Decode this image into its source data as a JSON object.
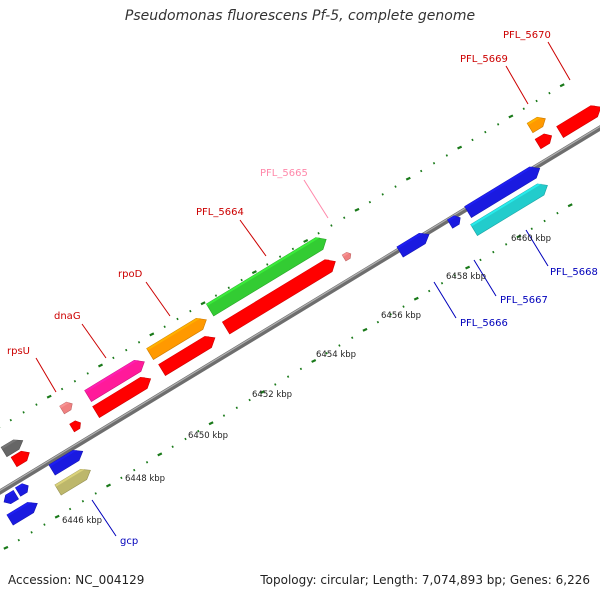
{
  "title": "Pseudomonas fluorescens Pf-5, complete genome",
  "footer": {
    "accession": "Accession: NC_004129",
    "summary": "Topology: circular; Length: 7,074,893 bp; Genes: 6,226"
  },
  "colors": {
    "backbone": "#8c8c8c",
    "tick": "#1a7a1a",
    "label_red": "#cc0000",
    "label_pink": "#ff88aa",
    "label_blue": "#0000bb",
    "gene_red": "#ff0000",
    "gene_blue": "#1a1ae0",
    "gene_green": "#33cc33",
    "gene_orange": "#ff9900",
    "gene_magenta": "#ff1a9a",
    "gene_cyan": "#22cccc",
    "gene_pink": "#f08080",
    "gene_olive": "#bdb76b",
    "gene_gray": "#666666"
  },
  "scale_labels": [
    {
      "text": "6446 kbp"
    },
    {
      "text": "6448 kbp"
    },
    {
      "text": "6450 kbp"
    },
    {
      "text": "6452 kbp"
    },
    {
      "text": "6454 kbp"
    },
    {
      "text": "6456 kbp"
    },
    {
      "text": "6458 kbp"
    },
    {
      "text": "6460 kbp"
    }
  ],
  "gene_labels": [
    {
      "id": "rpsU",
      "text": "rpsU",
      "color": "label_red"
    },
    {
      "id": "dnaG",
      "text": "dnaG",
      "color": "label_red"
    },
    {
      "id": "rpoD",
      "text": "rpoD",
      "color": "label_red"
    },
    {
      "id": "PFL_5664",
      "text": "PFL_5664",
      "color": "label_red"
    },
    {
      "id": "PFL_5665",
      "text": "PFL_5665",
      "color": "label_pink"
    },
    {
      "id": "PFL_5669",
      "text": "PFL_5669",
      "color": "label_red"
    },
    {
      "id": "PFL_5670",
      "text": "PFL_5670",
      "color": "label_red"
    },
    {
      "id": "gcp",
      "text": "gcp",
      "color": "label_blue"
    },
    {
      "id": "PFL_5666",
      "text": "PFL_5666",
      "color": "label_blue"
    },
    {
      "id": "PFL_5667",
      "text": "PFL_5667",
      "color": "label_blue"
    },
    {
      "id": "PFL_5668",
      "text": "PFL_5668",
      "color": "label_blue"
    }
  ],
  "genes": [
    {
      "id": "gene-gray-top",
      "color": "gene_gray",
      "strand": "forward"
    },
    {
      "id": "gene-red-small-left",
      "color": "gene_red",
      "strand": "forward"
    },
    {
      "id": "gene-blue-small-a",
      "color": "gene_blue",
      "strand": "reverse"
    },
    {
      "id": "gene-blue-small-b",
      "color": "gene_blue",
      "strand": "forward"
    },
    {
      "id": "gene-blue-lower",
      "color": "gene_blue",
      "strand": "forward"
    },
    {
      "id": "gene-blue-mid",
      "color": "gene_blue",
      "strand": "forward"
    },
    {
      "id": "gcp",
      "color": "gene_olive",
      "strand": "forward"
    },
    {
      "id": "rpsU-pink",
      "color": "gene_pink",
      "strand": "forward"
    },
    {
      "id": "rpsU-red",
      "color": "gene_red",
      "strand": "forward"
    },
    {
      "id": "dnaG",
      "color": "gene_magenta",
      "strand": "forward"
    },
    {
      "id": "dnaG-red",
      "color": "gene_red",
      "strand": "forward"
    },
    {
      "id": "rpoD",
      "color": "gene_orange",
      "strand": "forward"
    },
    {
      "id": "rpoD-red",
      "color": "gene_red",
      "strand": "forward"
    },
    {
      "id": "PFL_5664",
      "color": "gene_green",
      "strand": "forward"
    },
    {
      "id": "PFL_5664-red",
      "color": "gene_red",
      "strand": "forward"
    },
    {
      "id": "PFL_5665",
      "color": "gene_pink",
      "strand": "forward"
    },
    {
      "id": "PFL_5666",
      "color": "gene_blue",
      "strand": "forward"
    },
    {
      "id": "PFL_5667",
      "color": "gene_blue",
      "strand": "forward"
    },
    {
      "id": "PFL_5668-blue",
      "color": "gene_blue",
      "strand": "forward"
    },
    {
      "id": "PFL_5668",
      "color": "gene_cyan",
      "strand": "forward"
    },
    {
      "id": "PFL_5669",
      "color": "gene_orange",
      "strand": "forward"
    },
    {
      "id": "PFL_5669-red",
      "color": "gene_red",
      "strand": "forward"
    },
    {
      "id": "PFL_5670",
      "color": "gene_red",
      "strand": "forward"
    }
  ]
}
